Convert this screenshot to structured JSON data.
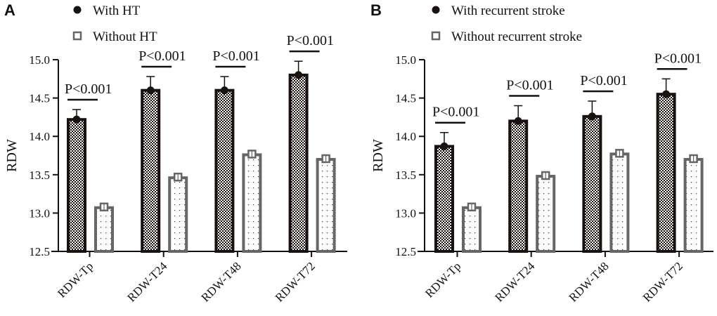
{
  "chart_data": [
    {
      "type": "bar",
      "panel": "A",
      "title": "",
      "xlabel": "",
      "ylabel": "RDW",
      "ylim": [
        12.5,
        15.0
      ],
      "yticks": [
        "12.5",
        "13.0",
        "13.5",
        "14.0",
        "14.5",
        "15.0"
      ],
      "categories": [
        "RDW-Tp",
        "RDW-T24",
        "RDW-T48",
        "RDW-T72"
      ],
      "legend_position": "top-left",
      "series": [
        {
          "name": "With HT",
          "marker": "circle",
          "pattern": "checker",
          "color": "#1a1111",
          "values": [
            14.22,
            14.6,
            14.6,
            14.8
          ],
          "error": [
            0.13,
            0.18,
            0.18,
            0.18
          ]
        },
        {
          "name": "Without HT",
          "marker": "square",
          "pattern": "dots",
          "color": "#666666",
          "values": [
            13.07,
            13.46,
            13.76,
            13.7
          ],
          "error": [
            0.03,
            0.04,
            0.04,
            0.03
          ]
        }
      ],
      "annotations": [
        "P<0.001",
        "P<0.001",
        "P<0.001",
        "P<0.001"
      ]
    },
    {
      "type": "bar",
      "panel": "B",
      "title": "",
      "xlabel": "",
      "ylabel": "RDW",
      "ylim": [
        12.5,
        15.0
      ],
      "yticks": [
        "12.5",
        "13.0",
        "13.5",
        "14.0",
        "14.5",
        "15.0"
      ],
      "categories": [
        "RDW-Tp",
        "RDW-T24",
        "RDW-T48",
        "RDW-T72"
      ],
      "legend_position": "top-left",
      "series": [
        {
          "name": "With recurrent stroke",
          "marker": "circle",
          "pattern": "checker",
          "color": "#1a1111",
          "values": [
            13.87,
            14.2,
            14.26,
            14.55
          ],
          "error": [
            0.18,
            0.2,
            0.2,
            0.2
          ]
        },
        {
          "name": "Without recurrent stroke",
          "marker": "square",
          "pattern": "dots",
          "color": "#666666",
          "values": [
            13.07,
            13.48,
            13.77,
            13.7
          ],
          "error": [
            0.03,
            0.04,
            0.04,
            0.03
          ]
        }
      ],
      "annotations": [
        "P<0.001",
        "P<0.001",
        "P<0.001",
        "P<0.001"
      ]
    }
  ]
}
